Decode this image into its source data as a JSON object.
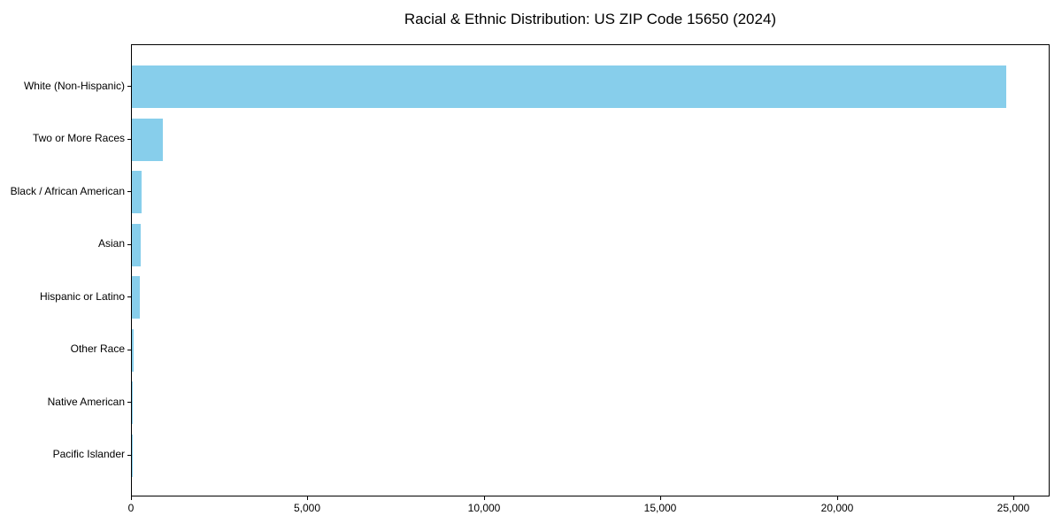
{
  "chart_data": {
    "type": "bar",
    "orientation": "horizontal",
    "title": "Racial & Ethnic Distribution: US ZIP Code 15650 (2024)",
    "categories": [
      "White (Non-Hispanic)",
      "Two or More Races",
      "Black / African American",
      "Asian",
      "Hispanic or Latino",
      "Other Race",
      "Native American",
      "Pacific Islander"
    ],
    "values": [
      24780,
      880,
      270,
      250,
      220,
      40,
      10,
      3
    ],
    "xlabel": "",
    "ylabel": "",
    "xlim": [
      0,
      26030
    ],
    "x_ticks": [
      0,
      5000,
      10000,
      15000,
      20000,
      25000
    ],
    "x_tick_labels": [
      "0",
      "5,000",
      "10,000",
      "15,000",
      "20,000",
      "25,000"
    ],
    "grid": false,
    "legend": null,
    "bar_color": "#87CEEB",
    "axis_color": "#000000",
    "text_color": "#000000",
    "background_color": "#ffffff"
  }
}
